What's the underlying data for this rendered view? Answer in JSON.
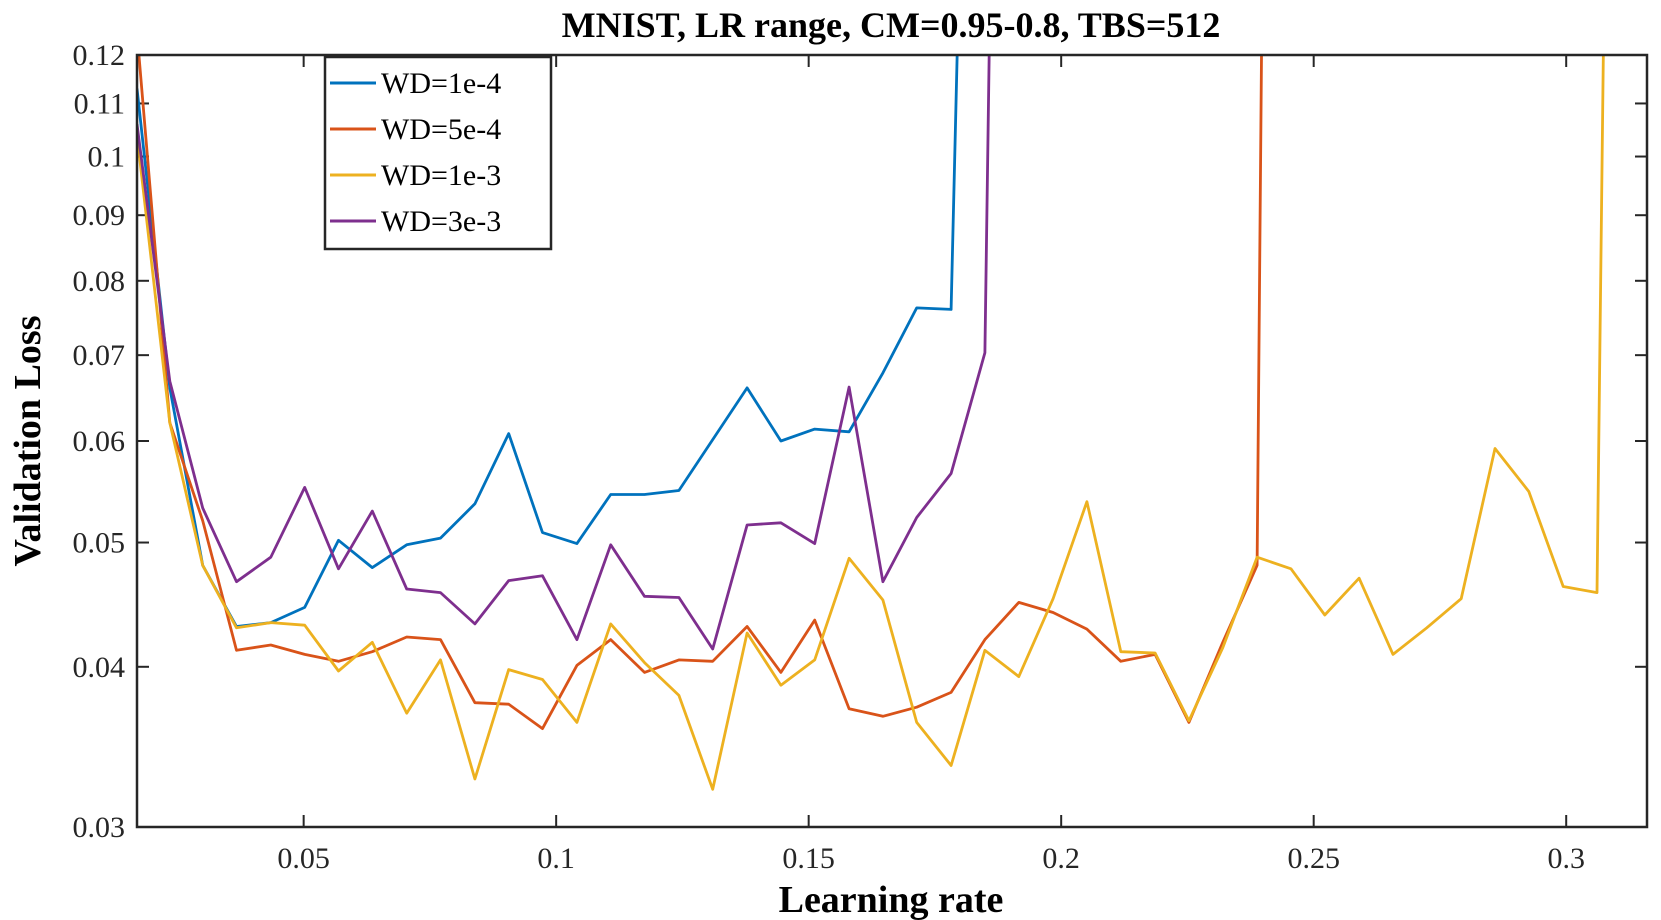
{
  "chart_data": {
    "type": "line",
    "title": "MNIST, LR range, CM=0.95-0.8, TBS=512",
    "xlabel": "Learning rate",
    "ylabel": "Validation Loss",
    "xlim": [
      0.017,
      0.316
    ],
    "ylim": [
      0.03,
      0.12
    ],
    "yscale": "log",
    "grid": false,
    "legend_position": "top-left",
    "x_ticks": [
      0.05,
      0.1,
      0.15,
      0.2,
      0.25,
      0.3
    ],
    "x_tick_labels": [
      "0.05",
      "0.1",
      "0.15",
      "0.2",
      "0.25",
      "0.3"
    ],
    "y_ticks": [
      0.03,
      0.04,
      0.05,
      0.06,
      0.07,
      0.08,
      0.09,
      0.1,
      0.11,
      0.12
    ],
    "y_tick_labels": [
      "0.03",
      "0.04",
      "0.05",
      "0.06",
      "0.07",
      "0.08",
      "0.09",
      "0.1",
      "0.11",
      "0.12"
    ],
    "series": [
      {
        "name": "WD=1e-4",
        "color": "#0072BD",
        "x": [
          0.017,
          0.0235,
          0.03,
          0.0367,
          0.0435,
          0.0502,
          0.0569,
          0.0636,
          0.0704,
          0.0771,
          0.0839,
          0.0906,
          0.0973,
          0.1041,
          0.1108,
          0.1175,
          0.1243,
          0.1378,
          0.1445,
          0.1512,
          0.158,
          0.1647,
          0.1714,
          0.1782,
          0.1795
        ],
        "y": [
          0.113,
          0.066,
          0.048,
          0.043,
          0.0433,
          0.0445,
          0.0502,
          0.0478,
          0.0498,
          0.0504,
          0.0536,
          0.0608,
          0.0509,
          0.0499,
          0.0545,
          0.0545,
          0.0549,
          0.066,
          0.06,
          0.0613,
          0.061,
          0.0678,
          0.0762,
          0.076,
          0.125
        ]
      },
      {
        "name": "WD=5e-4",
        "color": "#D95319",
        "x": [
          0.017,
          0.0235,
          0.03,
          0.0367,
          0.0435,
          0.0502,
          0.0569,
          0.0636,
          0.0704,
          0.0771,
          0.0839,
          0.0906,
          0.0973,
          0.1041,
          0.1108,
          0.1175,
          0.1243,
          0.131,
          0.1378,
          0.1445,
          0.1512,
          0.158,
          0.1647,
          0.1714,
          0.1782,
          0.1849,
          0.1916,
          0.1984,
          0.2051,
          0.2118,
          0.2186,
          0.2253,
          0.232,
          0.2388,
          0.2397
        ],
        "y": [
          0.125,
          0.062,
          0.052,
          0.0412,
          0.0416,
          0.0409,
          0.0404,
          0.0411,
          0.0422,
          0.042,
          0.0375,
          0.0374,
          0.0358,
          0.0401,
          0.042,
          0.0396,
          0.0405,
          0.0404,
          0.043,
          0.0396,
          0.0435,
          0.0371,
          0.0366,
          0.0372,
          0.0382,
          0.042,
          0.0449,
          0.0441,
          0.0428,
          0.0404,
          0.0409,
          0.0362,
          0.0418,
          0.048,
          0.125
        ]
      },
      {
        "name": "WD=1e-3",
        "color": "#EDB120",
        "x": [
          0.017,
          0.0235,
          0.03,
          0.0367,
          0.0435,
          0.0502,
          0.0569,
          0.0636,
          0.0704,
          0.0771,
          0.0839,
          0.0906,
          0.0973,
          0.1041,
          0.1108,
          0.1175,
          0.1243,
          0.131,
          0.1378,
          0.1445,
          0.1512,
          0.158,
          0.1647,
          0.1714,
          0.1782,
          0.1849,
          0.1916,
          0.1984,
          0.2051,
          0.2118,
          0.2186,
          0.2253,
          0.232,
          0.2388,
          0.2455,
          0.2522,
          0.259,
          0.2657,
          0.2724,
          0.2792,
          0.2859,
          0.2926,
          0.2994,
          0.3061,
          0.3074
        ],
        "y": [
          0.104,
          0.062,
          0.048,
          0.0429,
          0.0433,
          0.0431,
          0.0397,
          0.0418,
          0.0368,
          0.0405,
          0.0327,
          0.0398,
          0.0391,
          0.0362,
          0.0432,
          0.0403,
          0.038,
          0.0321,
          0.0425,
          0.0387,
          0.0405,
          0.0486,
          0.0451,
          0.0362,
          0.0335,
          0.0412,
          0.0393,
          0.0452,
          0.0538,
          0.0411,
          0.041,
          0.0363,
          0.0414,
          0.0487,
          0.0477,
          0.0439,
          0.0469,
          0.0409,
          0.0429,
          0.0452,
          0.0592,
          0.0548,
          0.0462,
          0.0457,
          0.125
        ]
      },
      {
        "name": "WD=3e-3",
        "color": "#7E2F8E",
        "x": [
          0.017,
          0.0235,
          0.03,
          0.0367,
          0.0435,
          0.0502,
          0.0569,
          0.0636,
          0.0704,
          0.0771,
          0.0839,
          0.0906,
          0.0973,
          0.1041,
          0.1108,
          0.1175,
          0.1243,
          0.131,
          0.1378,
          0.1445,
          0.1512,
          0.158,
          0.1647,
          0.1714,
          0.1782,
          0.1849,
          0.1858
        ],
        "y": [
          0.106,
          0.0668,
          0.0532,
          0.0466,
          0.0487,
          0.0552,
          0.0477,
          0.0529,
          0.046,
          0.0457,
          0.0432,
          0.0467,
          0.0471,
          0.042,
          0.0498,
          0.0454,
          0.0453,
          0.0413,
          0.0516,
          0.0518,
          0.0499,
          0.0661,
          0.0466,
          0.0523,
          0.0566,
          0.0703,
          0.125
        ]
      }
    ]
  }
}
